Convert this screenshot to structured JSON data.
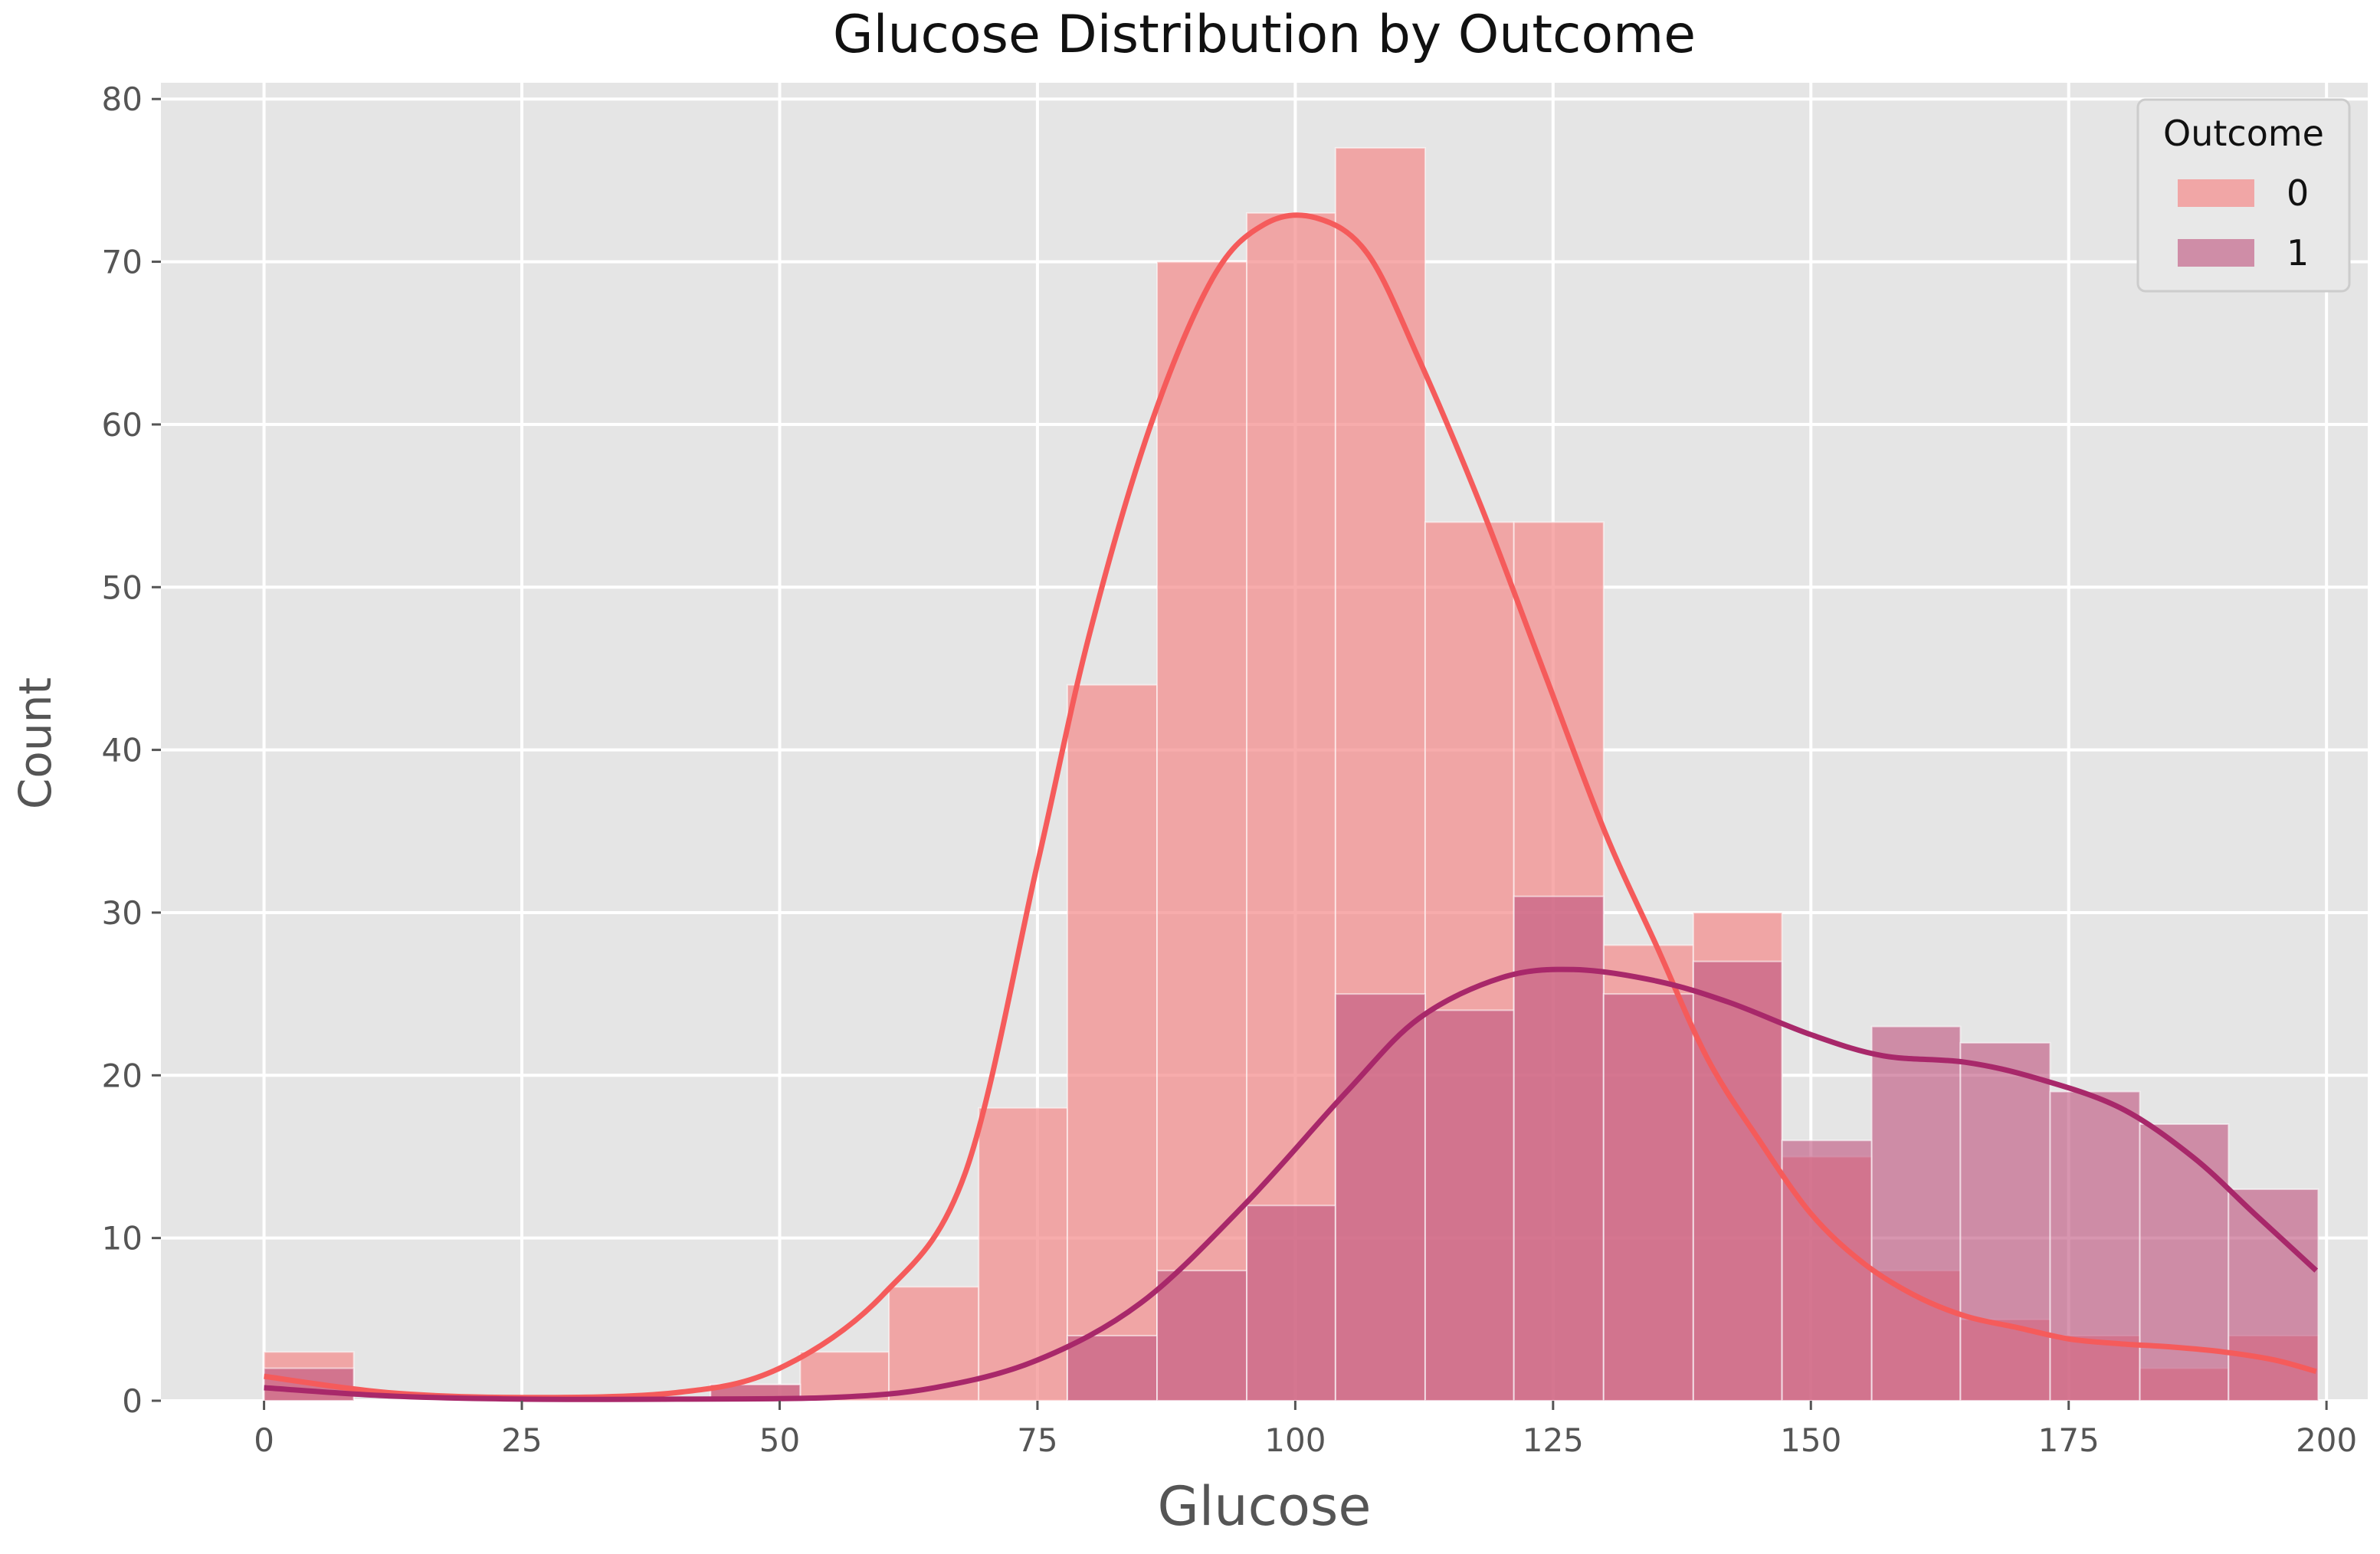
{
  "chart_data": {
    "type": "bar",
    "title": "Glucose Distribution by Outcome",
    "xlabel": "Glucose",
    "ylabel": "Count",
    "xlim": [
      -10,
      204
    ],
    "ylim": [
      0,
      81
    ],
    "xticks": [
      0,
      25,
      50,
      75,
      100,
      125,
      150,
      175,
      200
    ],
    "yticks": [
      0,
      10,
      20,
      30,
      40,
      50,
      60,
      70,
      80
    ],
    "grid": true,
    "legend": {
      "title": "Outcome",
      "placement": "top-right"
    },
    "bin_edges": [
      0,
      8.7,
      17.3,
      26,
      34.6,
      43.3,
      52,
      60.6,
      69.3,
      77.9,
      86.6,
      95.3,
      103.9,
      112.6,
      121.2,
      129.9,
      138.6,
      147.2,
      155.9,
      164.5,
      173.2,
      181.9,
      190.5,
      199.2
    ],
    "series": [
      {
        "name": "0",
        "color": "#f48c8c",
        "kde_color": "#f55b5b",
        "values": [
          3,
          0,
          0,
          0,
          0,
          1,
          3,
          7,
          18,
          44,
          70,
          73,
          77,
          54,
          54,
          28,
          30,
          15,
          8,
          5,
          4,
          2,
          4
        ],
        "kde": [
          [
            0,
            1.5
          ],
          [
            12,
            0.5
          ],
          [
            25,
            0.2
          ],
          [
            40,
            0.5
          ],
          [
            50,
            2
          ],
          [
            60,
            6.5
          ],
          [
            68,
            14
          ],
          [
            75,
            33
          ],
          [
            80,
            47
          ],
          [
            86,
            60
          ],
          [
            92,
            69
          ],
          [
            97,
            72.3
          ],
          [
            102,
            72.7
          ],
          [
            107,
            70.5
          ],
          [
            112,
            64
          ],
          [
            118,
            55
          ],
          [
            124,
            45
          ],
          [
            130,
            35
          ],
          [
            135,
            28
          ],
          [
            140,
            21
          ],
          [
            145,
            16
          ],
          [
            150,
            11.5
          ],
          [
            155,
            8.5
          ],
          [
            160,
            6.5
          ],
          [
            165,
            5.2
          ],
          [
            170,
            4.5
          ],
          [
            175,
            3.8
          ],
          [
            180,
            3.5
          ],
          [
            185,
            3.3
          ],
          [
            190,
            3
          ],
          [
            195,
            2.5
          ],
          [
            199,
            1.8
          ]
        ]
      },
      {
        "name": "1",
        "color": "#c0557f",
        "kde_color": "#a8286a",
        "values": [
          2,
          0,
          0,
          0,
          0,
          1,
          0,
          0,
          0,
          4,
          8,
          12,
          25,
          24,
          31,
          25,
          27,
          16,
          23,
          22,
          19,
          17,
          13
        ],
        "kde": [
          [
            0,
            0.8
          ],
          [
            12,
            0.3
          ],
          [
            25,
            0.1
          ],
          [
            40,
            0.1
          ],
          [
            55,
            0.2
          ],
          [
            65,
            0.8
          ],
          [
            75,
            2.5
          ],
          [
            85,
            6
          ],
          [
            95,
            12
          ],
          [
            105,
            19
          ],
          [
            112,
            23.5
          ],
          [
            120,
            26
          ],
          [
            127,
            26.5
          ],
          [
            135,
            25.8
          ],
          [
            142,
            24.5
          ],
          [
            150,
            22.5
          ],
          [
            157,
            21.2
          ],
          [
            165,
            20.8
          ],
          [
            172,
            19.8
          ],
          [
            180,
            18
          ],
          [
            187,
            15
          ],
          [
            193,
            11.5
          ],
          [
            199,
            8
          ]
        ]
      }
    ]
  }
}
